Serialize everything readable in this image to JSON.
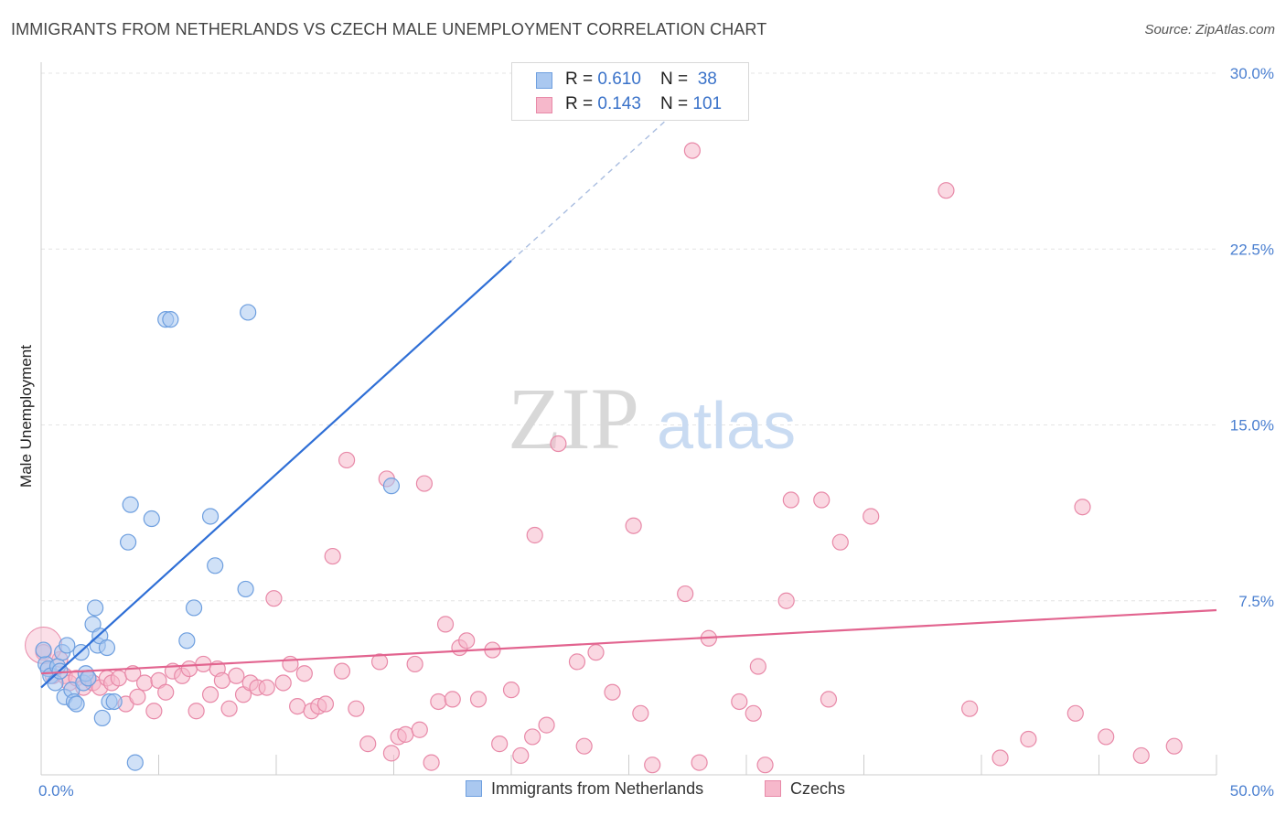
{
  "title": "IMMIGRANTS FROM NETHERLANDS VS CZECH MALE UNEMPLOYMENT CORRELATION CHART",
  "source": "Source: ZipAtlas.com",
  "watermark": {
    "zip": "ZIP",
    "atlas": "atlas"
  },
  "legend": {
    "blue": {
      "r_label": "R = ",
      "r_value": "0.610",
      "n_label": "N = ",
      "n_value": "38"
    },
    "pink": {
      "r_label": "R = ",
      "r_value": "0.143",
      "n_label": "N = ",
      "n_value": "101"
    }
  },
  "colors": {
    "blue_fill": "#aac8f0",
    "blue_stroke": "#6e9fdf",
    "blue_line": "#2f6fd6",
    "pink_fill": "#f6b8cb",
    "pink_stroke": "#e889a8",
    "pink_line": "#e2648f",
    "grid": "#e4e4e4",
    "axis_text": "#4a7fd0"
  },
  "chart_data": {
    "type": "scatter",
    "title": "IMMIGRANTS FROM NETHERLANDS VS CZECH MALE UNEMPLOYMENT CORRELATION CHART",
    "xlabel": "",
    "ylabel": "Male Unemployment",
    "xlim": [
      0,
      50
    ],
    "ylim": [
      0,
      30
    ],
    "x_tick_labels": [
      "0.0%",
      "50.0%"
    ],
    "y_ticks": [
      7.5,
      15.0,
      22.5,
      30.0
    ],
    "y_tick_labels": [
      "7.5%",
      "15.0%",
      "22.5%",
      "30.0%"
    ],
    "grid": true,
    "legend_position": "top-center",
    "series": [
      {
        "name": "Immigrants from Netherlands",
        "color": "#aac8f0",
        "trend": {
          "x0": 0,
          "y0": 3.8,
          "x1": 20,
          "y1": 22.0,
          "dashed_to_x": 27.5
        },
        "points": [
          [
            0.2,
            4.8
          ],
          [
            0.3,
            4.6
          ],
          [
            0.4,
            4.3
          ],
          [
            0.6,
            4.0
          ],
          [
            0.7,
            4.7
          ],
          [
            0.8,
            4.5
          ],
          [
            0.9,
            5.3
          ],
          [
            1.0,
            3.4
          ],
          [
            1.1,
            5.6
          ],
          [
            1.3,
            3.7
          ],
          [
            1.4,
            3.2
          ],
          [
            1.5,
            3.1
          ],
          [
            1.7,
            5.3
          ],
          [
            1.8,
            4.0
          ],
          [
            1.9,
            4.4
          ],
          [
            2.0,
            4.2
          ],
          [
            2.2,
            6.5
          ],
          [
            2.3,
            7.2
          ],
          [
            2.4,
            5.6
          ],
          [
            2.5,
            6.0
          ],
          [
            2.6,
            2.5
          ],
          [
            2.8,
            5.5
          ],
          [
            2.9,
            3.2
          ],
          [
            3.1,
            3.2
          ],
          [
            3.7,
            10.0
          ],
          [
            3.8,
            11.6
          ],
          [
            4.0,
            0.6
          ],
          [
            4.7,
            11.0
          ],
          [
            5.3,
            19.5
          ],
          [
            5.5,
            19.5
          ],
          [
            6.2,
            5.8
          ],
          [
            6.5,
            7.2
          ],
          [
            7.2,
            11.1
          ],
          [
            7.4,
            9.0
          ],
          [
            8.7,
            8.0
          ],
          [
            8.8,
            19.8
          ],
          [
            14.9,
            12.4
          ],
          [
            0.1,
            5.4
          ]
        ]
      },
      {
        "name": "Czechs",
        "color": "#f6b8cb",
        "trend": {
          "x0": 0,
          "y0": 4.4,
          "x1": 50,
          "y1": 7.1
        },
        "points": [
          [
            0.1,
            5.3
          ],
          [
            0.3,
            4.6
          ],
          [
            0.5,
            4.3
          ],
          [
            0.8,
            5.0
          ],
          [
            1.0,
            4.3
          ],
          [
            1.2,
            4.0
          ],
          [
            1.5,
            4.2
          ],
          [
            1.8,
            3.8
          ],
          [
            2.0,
            4.2
          ],
          [
            2.2,
            4.0
          ],
          [
            2.5,
            3.8
          ],
          [
            2.8,
            4.2
          ],
          [
            3.0,
            4.0
          ],
          [
            3.3,
            4.2
          ],
          [
            3.6,
            3.1
          ],
          [
            3.9,
            4.4
          ],
          [
            4.1,
            3.4
          ],
          [
            4.4,
            4.0
          ],
          [
            4.8,
            2.8
          ],
          [
            5.0,
            4.1
          ],
          [
            5.3,
            3.6
          ],
          [
            5.6,
            4.5
          ],
          [
            6.0,
            4.3
          ],
          [
            6.3,
            4.6
          ],
          [
            6.6,
            2.8
          ],
          [
            6.9,
            4.8
          ],
          [
            7.2,
            3.5
          ],
          [
            7.5,
            4.6
          ],
          [
            7.7,
            4.1
          ],
          [
            8.0,
            2.9
          ],
          [
            8.3,
            4.3
          ],
          [
            8.6,
            3.5
          ],
          [
            8.9,
            4.0
          ],
          [
            9.2,
            3.8
          ],
          [
            9.6,
            3.8
          ],
          [
            9.9,
            7.6
          ],
          [
            10.3,
            4.0
          ],
          [
            10.6,
            4.8
          ],
          [
            10.9,
            3.0
          ],
          [
            11.2,
            4.4
          ],
          [
            11.5,
            2.8
          ],
          [
            11.8,
            3.0
          ],
          [
            12.1,
            3.1
          ],
          [
            12.4,
            9.4
          ],
          [
            12.8,
            4.5
          ],
          [
            13.0,
            13.5
          ],
          [
            13.4,
            2.9
          ],
          [
            13.9,
            1.4
          ],
          [
            14.4,
            4.9
          ],
          [
            14.7,
            12.7
          ],
          [
            14.9,
            1.0
          ],
          [
            15.2,
            1.7
          ],
          [
            15.5,
            1.8
          ],
          [
            15.9,
            4.8
          ],
          [
            16.1,
            2.0
          ],
          [
            16.3,
            12.5
          ],
          [
            16.6,
            0.6
          ],
          [
            16.9,
            3.2
          ],
          [
            17.2,
            6.5
          ],
          [
            17.5,
            3.3
          ],
          [
            17.8,
            5.5
          ],
          [
            18.1,
            5.8
          ],
          [
            18.6,
            3.3
          ],
          [
            19.2,
            5.4
          ],
          [
            19.5,
            1.4
          ],
          [
            20.0,
            3.7
          ],
          [
            20.4,
            0.9
          ],
          [
            20.9,
            1.7
          ],
          [
            21.0,
            10.3
          ],
          [
            21.5,
            2.2
          ],
          [
            22.0,
            14.2
          ],
          [
            22.8,
            4.9
          ],
          [
            23.1,
            1.3
          ],
          [
            23.6,
            5.3
          ],
          [
            24.3,
            3.6
          ],
          [
            25.2,
            10.7
          ],
          [
            25.5,
            2.7
          ],
          [
            26.0,
            0.5
          ],
          [
            27.4,
            7.8
          ],
          [
            27.7,
            26.7
          ],
          [
            28.0,
            0.6
          ],
          [
            28.4,
            5.9
          ],
          [
            29.7,
            3.2
          ],
          [
            30.3,
            2.7
          ],
          [
            30.5,
            4.7
          ],
          [
            30.8,
            0.5
          ],
          [
            31.7,
            7.5
          ],
          [
            31.9,
            11.8
          ],
          [
            33.2,
            11.8
          ],
          [
            33.5,
            3.3
          ],
          [
            34.0,
            10.0
          ],
          [
            35.3,
            11.1
          ],
          [
            38.5,
            25.0
          ],
          [
            39.5,
            2.9
          ],
          [
            40.8,
            0.8
          ],
          [
            42.0,
            1.6
          ],
          [
            44.0,
            2.7
          ],
          [
            44.3,
            11.5
          ],
          [
            45.3,
            1.7
          ],
          [
            46.8,
            0.9
          ],
          [
            48.2,
            1.3
          ]
        ]
      }
    ]
  },
  "bottom_legend": {
    "blue_label": "Immigrants from Netherlands",
    "pink_label": "Czechs"
  }
}
